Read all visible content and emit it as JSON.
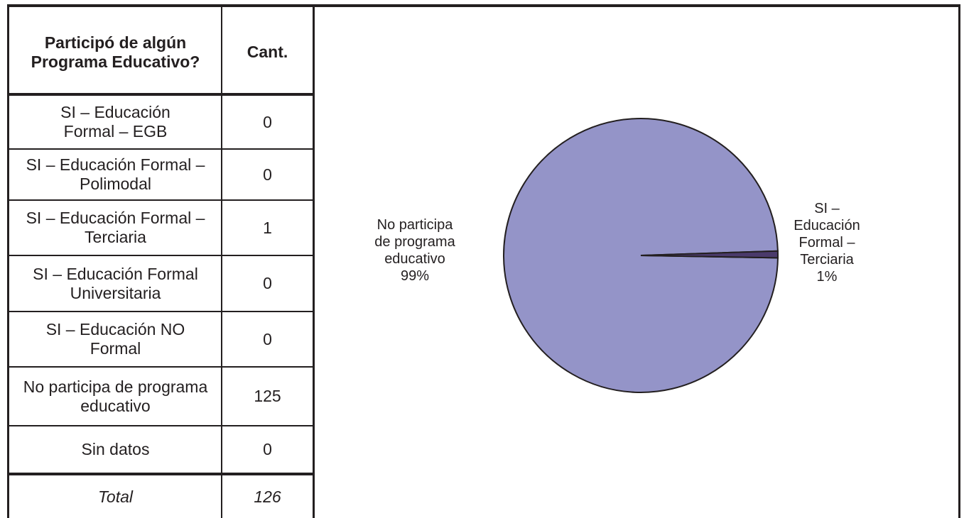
{
  "table": {
    "header": {
      "question": "Participó de algún Programa Educativo?",
      "count": "Cant."
    },
    "rows": [
      {
        "label": "SI – Educación Formal – EGB",
        "count": "0"
      },
      {
        "label": "SI – Educación Formal – Polimodal",
        "count": "0"
      },
      {
        "label": "SI – Educación Formal – Terciaria",
        "count": "1"
      },
      {
        "label": "SI – Educación Formal Universitaria",
        "count": "0"
      },
      {
        "label": "SI – Educación NO Formal",
        "count": "0"
      },
      {
        "label": "No participa de programa educativo",
        "count": "125"
      },
      {
        "label": "Sin datos",
        "count": "0"
      }
    ],
    "total": {
      "label": "Total",
      "count": "126"
    }
  },
  "chart_data": {
    "type": "pie",
    "slices": [
      {
        "label": "No participa de programa educativo",
        "value": 125,
        "percent_label": "99%",
        "color": "#9494c8"
      },
      {
        "label": "SI – Educación Formal – Terciaria",
        "value": 1,
        "percent_label": "1%",
        "color": "#4a3a6b"
      }
    ],
    "slice_labels": {
      "major": [
        "No participa",
        "de programa",
        "educativo",
        "99%"
      ],
      "minor": [
        "SI –",
        "Educación",
        "Formal –",
        "Terciaria",
        "1%"
      ]
    }
  }
}
